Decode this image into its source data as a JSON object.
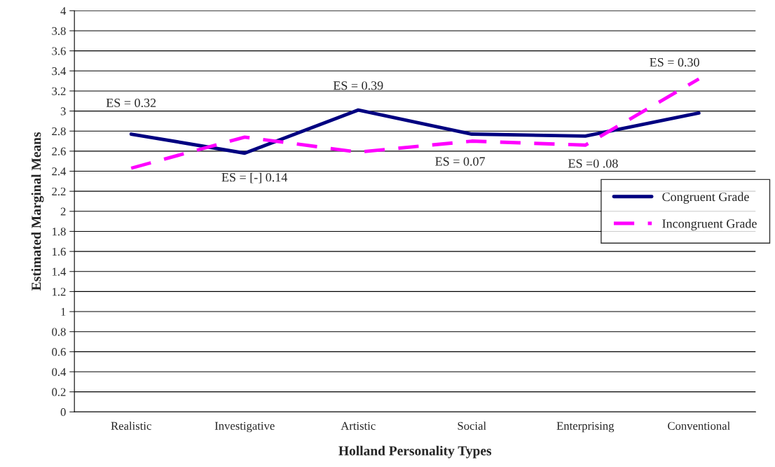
{
  "chart_data": {
    "type": "line",
    "xlabel": "Holland Personality Types",
    "ylabel": "Estimated Marginal Means",
    "categories": [
      "Realistic",
      "Investigative",
      "Artistic",
      "Social",
      "Enterprising",
      "Conventional"
    ],
    "series": [
      {
        "name": "Congruent Grade",
        "color": "#000080",
        "line_style": "solid",
        "values": [
          2.77,
          2.58,
          3.01,
          2.77,
          2.75,
          2.98
        ]
      },
      {
        "name": "Incongruent Grade",
        "color": "#ff00ff",
        "line_style": "dashed",
        "values": [
          2.43,
          2.74,
          2.59,
          2.7,
          2.66,
          3.32
        ]
      }
    ],
    "ylim": [
      0,
      4
    ],
    "yticks": [
      0,
      0.2,
      0.4,
      0.6,
      0.8,
      1,
      1.2,
      1.4,
      1.6,
      1.8,
      2,
      2.2,
      2.4,
      2.6,
      2.8,
      3,
      3.2,
      3.4,
      3.6,
      3.8,
      4
    ],
    "grid": "y",
    "legend": "right",
    "marker": "none",
    "annotations": [
      "ES = 0.32",
      "ES = [-] 0.14",
      "ES = 0.39",
      "ES = 0.07",
      "ES =0 .08",
      "ES = 0.30"
    ]
  }
}
